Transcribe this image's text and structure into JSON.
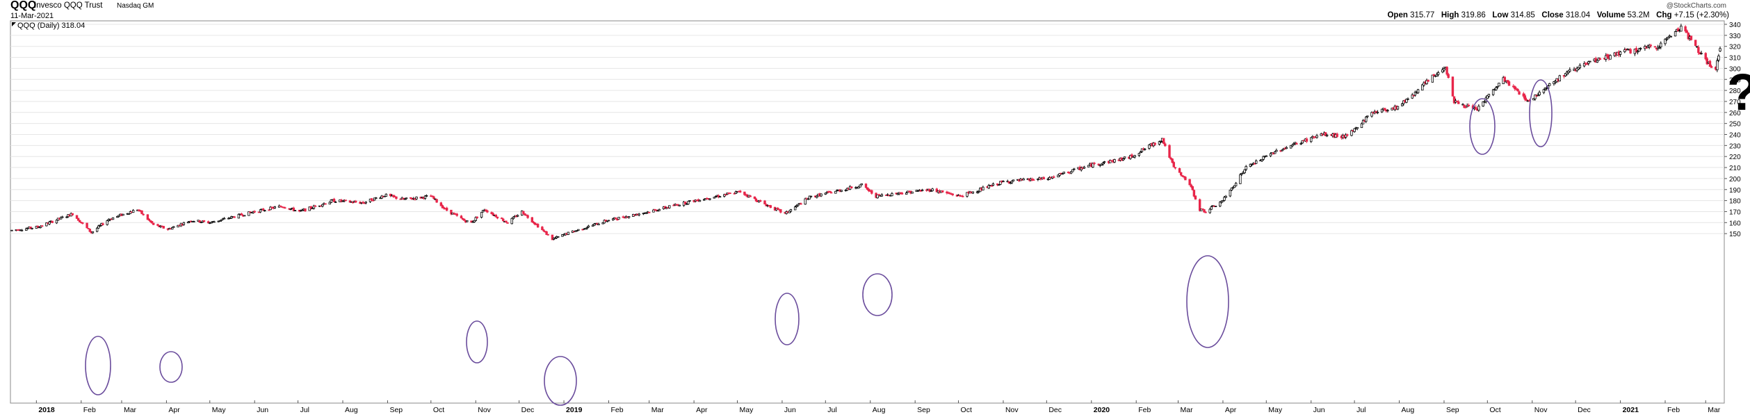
{
  "header": {
    "symbol": "QQQ",
    "name": "Invesco QQQ Trust",
    "exchange": "Nasdaq GM",
    "date": "11-Mar-2021",
    "copyright": "@StockCharts.com",
    "open_label": "Open",
    "open_value": "315.77",
    "high_label": "High",
    "high_value": "319.86",
    "low_label": "Low",
    "low_value": "314.85",
    "close_label": "Close",
    "close_value": "318.04",
    "volume_label": "Volume",
    "volume_value": "53.2M",
    "chg_label": "Chg",
    "chg_value": "+7.15 (+2.30%)",
    "legend_label": "QQQ (Daily) 318.04",
    "question_mark": "?"
  },
  "colors": {
    "up": "#000000",
    "down": "#e8264a",
    "ellipse": "#6a4c9c",
    "grid": "#e6e6e6"
  },
  "chart_data": {
    "type": "candlestick",
    "title": "",
    "ylim": [
      140,
      340
    ],
    "yticks": [
      150,
      160,
      170,
      180,
      190,
      200,
      210,
      220,
      230,
      240,
      250,
      260,
      270,
      280,
      290,
      300,
      310,
      320,
      330,
      340
    ],
    "xtick_labels": [
      {
        "label": "2018",
        "bold": true,
        "date": "2018-01-01"
      },
      {
        "label": "Feb",
        "date": "2018-02-01"
      },
      {
        "label": "Mar",
        "date": "2018-03-01"
      },
      {
        "label": "Apr",
        "date": "2018-04-01"
      },
      {
        "label": "May",
        "date": "2018-05-01"
      },
      {
        "label": "Jun",
        "date": "2018-06-01"
      },
      {
        "label": "Jul",
        "date": "2018-07-01"
      },
      {
        "label": "Aug",
        "date": "2018-08-01"
      },
      {
        "label": "Sep",
        "date": "2018-09-01"
      },
      {
        "label": "Oct",
        "date": "2018-10-01"
      },
      {
        "label": "Nov",
        "date": "2018-11-01"
      },
      {
        "label": "Dec",
        "date": "2018-12-01"
      },
      {
        "label": "2019",
        "bold": true,
        "date": "2019-01-01"
      },
      {
        "label": "Feb",
        "date": "2019-02-01"
      },
      {
        "label": "Mar",
        "date": "2019-03-01"
      },
      {
        "label": "Apr",
        "date": "2019-04-01"
      },
      {
        "label": "May",
        "date": "2019-05-01"
      },
      {
        "label": "Jun",
        "date": "2019-06-01"
      },
      {
        "label": "Jul",
        "date": "2019-07-01"
      },
      {
        "label": "Aug",
        "date": "2019-08-01"
      },
      {
        "label": "Sep",
        "date": "2019-09-01"
      },
      {
        "label": "Oct",
        "date": "2019-10-01"
      },
      {
        "label": "Nov",
        "date": "2019-11-01"
      },
      {
        "label": "Dec",
        "date": "2019-12-01"
      },
      {
        "label": "2020",
        "bold": true,
        "date": "2020-01-01"
      },
      {
        "label": "Feb",
        "date": "2020-02-01"
      },
      {
        "label": "Mar",
        "date": "2020-03-01"
      },
      {
        "label": "Apr",
        "date": "2020-04-01"
      },
      {
        "label": "May",
        "date": "2020-05-01"
      },
      {
        "label": "Jun",
        "date": "2020-06-01"
      },
      {
        "label": "Jul",
        "date": "2020-07-01"
      },
      {
        "label": "Aug",
        "date": "2020-08-01"
      },
      {
        "label": "Sep",
        "date": "2020-09-01"
      },
      {
        "label": "Oct",
        "date": "2020-10-01"
      },
      {
        "label": "Nov",
        "date": "2020-11-01"
      },
      {
        "label": "Dec",
        "date": "2020-12-01"
      },
      {
        "label": "2021",
        "bold": true,
        "date": "2021-01-01"
      },
      {
        "label": "Feb",
        "date": "2021-02-01"
      },
      {
        "label": "Mar",
        "date": "2021-03-01"
      }
    ],
    "date_range": [
      "2017-12-15",
      "2021-03-11"
    ],
    "price_path": [
      [
        "2017-12-15",
        153
      ],
      [
        "2018-01-02",
        156
      ],
      [
        "2018-01-26",
        168
      ],
      [
        "2018-02-08",
        151
      ],
      [
        "2018-02-20",
        163
      ],
      [
        "2018-03-12",
        172
      ],
      [
        "2018-03-23",
        158
      ],
      [
        "2018-04-02",
        154
      ],
      [
        "2018-04-18",
        162
      ],
      [
        "2018-05-01",
        160
      ],
      [
        "2018-06-01",
        170
      ],
      [
        "2018-06-20",
        175
      ],
      [
        "2018-07-02",
        170
      ],
      [
        "2018-07-25",
        180
      ],
      [
        "2018-08-15",
        178
      ],
      [
        "2018-08-30",
        185
      ],
      [
        "2018-09-12",
        181
      ],
      [
        "2018-10-01",
        184
      ],
      [
        "2018-10-11",
        172
      ],
      [
        "2018-10-24",
        162
      ],
      [
        "2018-10-29",
        160
      ],
      [
        "2018-11-07",
        172
      ],
      [
        "2018-11-23",
        160
      ],
      [
        "2018-12-03",
        170
      ],
      [
        "2018-12-24",
        145
      ],
      [
        "2019-01-03",
        150
      ],
      [
        "2019-01-31",
        162
      ],
      [
        "2019-03-01",
        170
      ],
      [
        "2019-04-01",
        180
      ],
      [
        "2019-05-03",
        188
      ],
      [
        "2019-05-15",
        180
      ],
      [
        "2019-06-03",
        168
      ],
      [
        "2019-06-20",
        183
      ],
      [
        "2019-07-26",
        194
      ],
      [
        "2019-08-05",
        184
      ],
      [
        "2019-08-22",
        187
      ],
      [
        "2019-09-12",
        190
      ],
      [
        "2019-10-02",
        184
      ],
      [
        "2019-11-01",
        197
      ],
      [
        "2019-12-02",
        200
      ],
      [
        "2019-12-31",
        212
      ],
      [
        "2020-01-27",
        219
      ],
      [
        "2020-02-19",
        236
      ],
      [
        "2020-02-27",
        210
      ],
      [
        "2020-03-09",
        195
      ],
      [
        "2020-03-16",
        172
      ],
      [
        "2020-03-20",
        170
      ],
      [
        "2020-04-01",
        180
      ],
      [
        "2020-04-17",
        210
      ],
      [
        "2020-05-08",
        225
      ],
      [
        "2020-06-08",
        240
      ],
      [
        "2020-06-26",
        238
      ],
      [
        "2020-07-13",
        260
      ],
      [
        "2020-07-31",
        265
      ],
      [
        "2020-09-02",
        302
      ],
      [
        "2020-09-08",
        270
      ],
      [
        "2020-09-23",
        262
      ],
      [
        "2020-10-12",
        290
      ],
      [
        "2020-10-30",
        270
      ],
      [
        "2020-11-09",
        282
      ],
      [
        "2020-11-30",
        300
      ],
      [
        "2020-12-31",
        314
      ],
      [
        "2021-01-27",
        320
      ],
      [
        "2021-02-12",
        338
      ],
      [
        "2021-03-04",
        302
      ],
      [
        "2021-03-08",
        300
      ],
      [
        "2021-03-11",
        318
      ]
    ],
    "last": {
      "open": 315.77,
      "high": 319.86,
      "low": 314.85,
      "close": 318.04
    }
  }
}
